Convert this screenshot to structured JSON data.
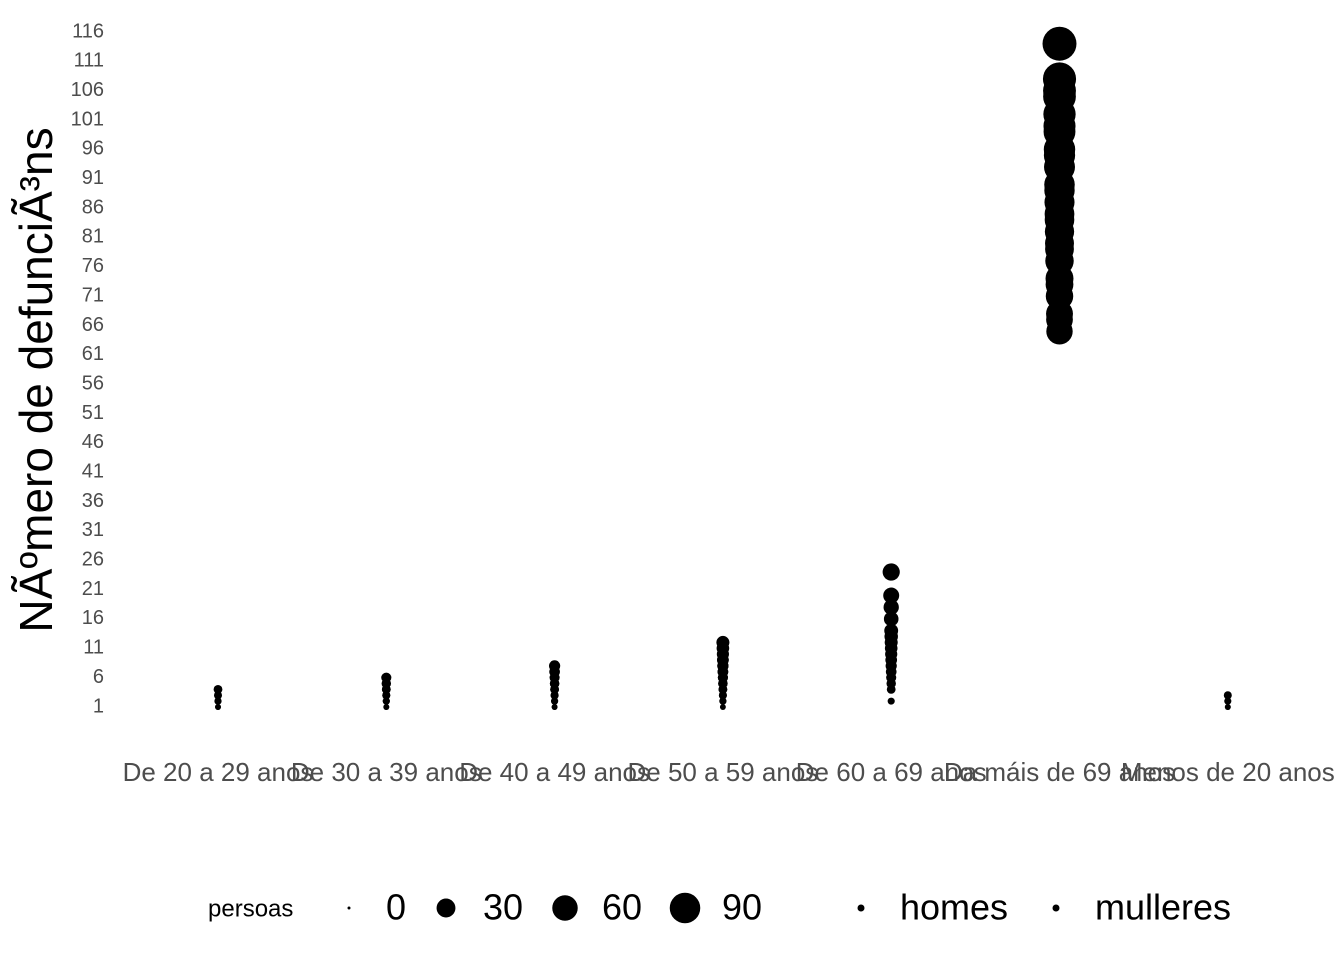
{
  "chart_data": {
    "type": "scatter",
    "y_label": "NÃºmero de defunciÃ³ns",
    "categories": [
      "De 20 a 29 anos",
      "De 30 a 39 anos",
      "De 40 a 49 anos",
      "De 50 a 59 anos",
      "De 60 a 69 anos",
      "Da máis de 69 anos",
      "Menos de 20 anos"
    ],
    "ylim": [
      -3,
      119
    ],
    "yticks": [
      1,
      6,
      11,
      16,
      21,
      26,
      31,
      36,
      41,
      46,
      51,
      56,
      61,
      66,
      71,
      76,
      81,
      86,
      91,
      96,
      101,
      106,
      111,
      116
    ],
    "size_legend": {
      "title": "persoas",
      "values": [
        0,
        30,
        60,
        90
      ]
    },
    "series": [
      {
        "name": "homes",
        "color": "#000000",
        "x": [
          "De 20 a 29 anos",
          "De 20 a 29 anos",
          "De 20 a 29 anos",
          "De 20 a 29 anos",
          "De 30 a 39 anos",
          "De 30 a 39 anos",
          "De 30 a 39 anos",
          "De 30 a 39 anos",
          "De 30 a 39 anos",
          "De 30 a 39 anos",
          "De 40 a 49 anos",
          "De 40 a 49 anos",
          "De 40 a 49 anos",
          "De 40 a 49 anos",
          "De 40 a 49 anos",
          "De 40 a 49 anos",
          "De 40 a 49 anos",
          "De 40 a 49 anos",
          "De 50 a 59 anos",
          "De 50 a 59 anos",
          "De 50 a 59 anos",
          "De 50 a 59 anos",
          "De 50 a 59 anos",
          "De 50 a 59 anos",
          "De 50 a 59 anos",
          "De 50 a 59 anos",
          "De 50 a 59 anos",
          "De 50 a 59 anos",
          "De 50 a 59 anos",
          "De 60 a 69 anos",
          "De 60 a 69 anos",
          "De 60 a 69 anos",
          "De 60 a 69 anos",
          "De 60 a 69 anos",
          "De 60 a 69 anos",
          "De 60 a 69 anos",
          "De 60 a 69 anos",
          "De 60 a 69 anos",
          "De 60 a 69 anos",
          "De 60 a 69 anos",
          "Da máis de 69 anos",
          "Da máis de 69 anos",
          "Da máis de 69 anos",
          "Da máis de 69 anos",
          "Da máis de 69 anos",
          "Da máis de 69 anos",
          "Da máis de 69 anos",
          "Da máis de 69 anos",
          "Da máis de 69 anos",
          "Da máis de 69 anos",
          "Da máis de 69 anos",
          "Da máis de 69 anos",
          "Da máis de 69 anos",
          "Da máis de 69 anos",
          "Da máis de 69 anos",
          "Da máis de 69 anos",
          "Da máis de 69 anos",
          "Menos de 20 anos",
          "Menos de 20 anos",
          "Menos de 20 anos"
        ],
        "values": [
          1,
          2,
          3,
          4,
          1,
          2,
          3,
          4,
          5,
          6,
          1,
          2,
          3,
          4,
          5,
          6,
          7,
          8,
          2,
          3,
          4,
          5,
          6,
          7,
          8,
          9,
          10,
          11,
          12,
          5,
          6,
          8,
          9,
          10,
          12,
          14,
          16,
          18,
          20,
          24,
          65,
          68,
          71,
          74,
          77,
          80,
          82,
          85,
          87,
          90,
          93,
          96,
          99,
          102,
          105,
          108,
          114,
          1,
          2,
          3
        ]
      },
      {
        "name": "mulleres",
        "color": "#000000",
        "x": [
          "De 20 a 29 anos",
          "De 20 a 29 anos",
          "De 30 a 39 anos",
          "De 30 a 39 anos",
          "De 30 a 39 anos",
          "De 30 a 39 anos",
          "De 40 a 49 anos",
          "De 40 a 49 anos",
          "De 40 a 49 anos",
          "De 40 a 49 anos",
          "De 40 a 49 anos",
          "De 50 a 59 anos",
          "De 50 a 59 anos",
          "De 50 a 59 anos",
          "De 50 a 59 anos",
          "De 50 a 59 anos",
          "De 50 a 59 anos",
          "De 50 a 59 anos",
          "De 50 a 59 anos",
          "De 50 a 59 anos",
          "De 60 a 69 anos",
          "De 60 a 69 anos",
          "De 60 a 69 anos",
          "De 60 a 69 anos",
          "De 60 a 69 anos",
          "Da máis de 69 anos",
          "Da máis de 69 anos",
          "Da máis de 69 anos",
          "Da máis de 69 anos",
          "Da máis de 69 anos",
          "Da máis de 69 anos",
          "Da máis de 69 anos",
          "Da máis de 69 anos",
          "Menos de 20 anos"
        ],
        "values": [
          1,
          2,
          1,
          2,
          3,
          4,
          1,
          2,
          3,
          4,
          5,
          1,
          2,
          3,
          4,
          5,
          6,
          7,
          8,
          9,
          2,
          4,
          7,
          11,
          13,
          67,
          73,
          79,
          84,
          89,
          95,
          100,
          106,
          1
        ]
      }
    ]
  }
}
